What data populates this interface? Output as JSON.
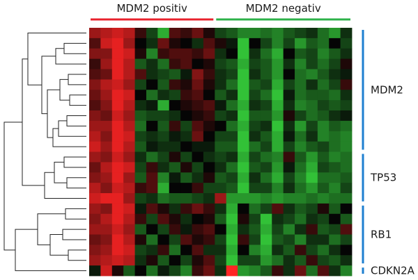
{
  "chart_data": {
    "type": "heatmap",
    "title": "",
    "column_groups": [
      {
        "label": "MDM2 positiv",
        "count": 11,
        "color": "#e8222c"
      },
      {
        "label": "MDM2 negativ",
        "count": 12,
        "color": "#2db24a"
      }
    ],
    "row_groups": [
      {
        "label": "MDM2",
        "rows": 12,
        "color": "#1e7fd0"
      },
      {
        "label": "TP53",
        "rows": 5,
        "color": "#1e7fd0"
      },
      {
        "label": "RB1",
        "rows": 6,
        "color": "#1e7fd0"
      },
      {
        "label": "CDKN2A",
        "rows": 1,
        "color": "#1e7fd0"
      }
    ],
    "color_scale": {
      "low": "#37d63d",
      "mid": "#050505",
      "high": "#ff2424",
      "range": [
        -1,
        1
      ]
    },
    "values": [
      [
        0.6,
        0.7,
        0.8,
        0.7,
        0.2,
        -0.3,
        -0.8,
        0.3,
        0.2,
        0.4,
        0.1,
        -0.3,
        -0.4,
        -0.6,
        -0.6,
        -0.5,
        -0.6,
        -0.4,
        -0.3,
        -0.2,
        -0.5,
        -0.7,
        -0.2
      ],
      [
        0.3,
        0.8,
        0.9,
        0.6,
        0.0,
        -0.2,
        0.4,
        0.1,
        0.0,
        -0.2,
        0.3,
        0.1,
        -0.1,
        -0.9,
        0.0,
        -0.3,
        -0.6,
        -0.3,
        -0.7,
        -0.4,
        -0.5,
        0.0,
        -0.3
      ],
      [
        0.5,
        0.5,
        0.9,
        0.8,
        0.1,
        -0.6,
        0.2,
        0.3,
        0.3,
        0.2,
        0.4,
        -0.2,
        0.0,
        -0.9,
        -0.2,
        -0.5,
        -0.8,
        0.0,
        -0.4,
        -0.3,
        -0.6,
        -0.4,
        -0.2
      ],
      [
        0.2,
        0.6,
        0.9,
        0.7,
        -0.4,
        -0.2,
        -0.5,
        0.2,
        0.3,
        0.0,
        0.1,
        -0.3,
        -0.4,
        -0.8,
        -0.3,
        -0.4,
        -0.7,
        -0.2,
        -0.6,
        -0.3,
        -0.5,
        -0.3,
        0.1
      ],
      [
        0.3,
        0.4,
        0.9,
        0.7,
        0.3,
        -0.2,
        -0.3,
        -0.4,
        -0.1,
        0.5,
        0.2,
        -0.2,
        -0.3,
        -0.9,
        -0.2,
        -0.4,
        -0.7,
        0.0,
        -0.5,
        -0.6,
        -0.4,
        -0.2,
        -0.1
      ],
      [
        0.5,
        0.7,
        0.8,
        0.6,
        -0.3,
        0.0,
        -0.4,
        0.2,
        0.1,
        0.4,
        0.1,
        -0.2,
        -0.5,
        -0.9,
        -0.4,
        -0.3,
        -0.8,
        -0.3,
        -0.5,
        -0.2,
        -0.5,
        -0.3,
        0.2
      ],
      [
        0.4,
        0.6,
        0.9,
        0.8,
        0.0,
        -0.5,
        -0.2,
        -0.3,
        0.2,
        0.3,
        0.0,
        -0.4,
        -0.2,
        -0.9,
        -0.3,
        -0.5,
        -0.9,
        -0.1,
        -0.5,
        -0.4,
        -0.4,
        -0.5,
        -0.2
      ],
      [
        0.3,
        0.5,
        0.9,
        0.7,
        -0.2,
        -0.1,
        -0.8,
        0.0,
        0.1,
        0.2,
        0.3,
        -0.1,
        -0.5,
        -0.8,
        -0.2,
        -0.3,
        -0.8,
        -0.2,
        -0.6,
        -0.5,
        -0.3,
        -0.4,
        -0.3
      ],
      [
        0.5,
        0.4,
        0.8,
        0.6,
        -0.4,
        -0.3,
        -0.3,
        -0.2,
        0.0,
        0.1,
        0.2,
        -0.3,
        -0.2,
        -0.9,
        -0.4,
        -0.4,
        -0.7,
        0.1,
        -0.3,
        -0.5,
        -0.4,
        -0.2,
        -0.1
      ],
      [
        0.6,
        0.6,
        0.9,
        0.7,
        -0.5,
        0.0,
        -0.4,
        0.2,
        -0.3,
        0.3,
        0.1,
        0.0,
        -0.5,
        -0.8,
        -0.3,
        -0.2,
        -0.9,
        -0.2,
        -0.7,
        -0.3,
        -0.6,
        -0.4,
        -0.5
      ],
      [
        0.7,
        0.5,
        0.9,
        0.8,
        -0.3,
        -0.2,
        -0.3,
        -0.1,
        -0.2,
        0.4,
        0.0,
        -0.3,
        -0.3,
        -0.9,
        -0.2,
        -0.4,
        -0.8,
        -0.1,
        -0.5,
        -0.2,
        -0.6,
        -0.5,
        -0.6
      ],
      [
        0.8,
        0.6,
        0.9,
        0.7,
        -0.4,
        -0.1,
        -0.2,
        -0.2,
        0.0,
        -0.1,
        -0.1,
        -0.4,
        -0.4,
        -0.9,
        -0.5,
        -0.3,
        -0.8,
        -0.3,
        -0.6,
        -0.4,
        -0.3,
        -0.5,
        -0.6
      ],
      [
        0.6,
        0.5,
        0.8,
        0.6,
        -0.2,
        -0.5,
        -0.3,
        0.1,
        -0.3,
        0.0,
        -0.2,
        -0.3,
        -0.2,
        -0.8,
        -0.3,
        -0.5,
        -0.6,
        0.2,
        -0.4,
        -0.7,
        -0.4,
        -0.6,
        -0.5
      ],
      [
        0.4,
        0.7,
        0.9,
        0.8,
        -0.3,
        0.2,
        -0.2,
        -0.4,
        0.1,
        -0.3,
        0.0,
        -0.2,
        -0.5,
        -0.9,
        -0.4,
        -0.3,
        -0.7,
        -0.1,
        -0.5,
        -0.8,
        -0.3,
        -0.4,
        -0.5
      ],
      [
        0.5,
        0.6,
        0.9,
        0.6,
        -0.4,
        0.3,
        -0.6,
        -0.1,
        -0.4,
        -0.2,
        0.1,
        -0.4,
        -0.3,
        -0.8,
        -0.2,
        -0.5,
        -0.8,
        -0.3,
        -0.6,
        -0.9,
        -0.5,
        -0.5,
        -0.4
      ],
      [
        0.7,
        0.5,
        0.8,
        0.7,
        0.2,
        0.3,
        -0.8,
        0.0,
        0.0,
        0.2,
        -0.3,
        -0.3,
        -0.4,
        -0.9,
        -0.3,
        -0.3,
        -0.6,
        -0.2,
        -0.5,
        -0.7,
        -0.4,
        -0.6,
        -0.3
      ],
      [
        0.8,
        0.9,
        0.9,
        0.6,
        -0.3,
        -0.2,
        -0.5,
        -0.4,
        -0.4,
        -0.3,
        -0.2,
        0.6,
        -0.7,
        -0.7,
        -0.7,
        -0.6,
        -0.7,
        -0.6,
        -0.6,
        -0.5,
        -0.6,
        -0.5,
        -0.5
      ],
      [
        0.6,
        0.5,
        0.9,
        0.8,
        -0.1,
        0.3,
        0.1,
        -0.2,
        0.2,
        0.4,
        0.2,
        -0.2,
        -0.8,
        0.0,
        -0.5,
        -0.3,
        0.3,
        -0.2,
        -0.4,
        -0.3,
        0.1,
        -0.4,
        0.0
      ],
      [
        0.5,
        0.7,
        0.9,
        0.7,
        0.2,
        -0.3,
        0.3,
        0.1,
        -0.2,
        0.0,
        0.1,
        -0.4,
        -0.9,
        0.1,
        -0.3,
        -0.9,
        -0.2,
        -0.3,
        -0.5,
        -0.2,
        -0.3,
        0.0,
        -0.4
      ],
      [
        0.6,
        0.6,
        0.8,
        0.6,
        -0.4,
        0.0,
        -0.3,
        0.2,
        -0.1,
        0.2,
        0.3,
        0.0,
        -0.8,
        -0.2,
        -0.4,
        -0.8,
        -0.3,
        -0.6,
        -0.2,
        0.2,
        -0.4,
        -0.3,
        0.3
      ],
      [
        0.4,
        0.5,
        0.9,
        0.7,
        0.1,
        -0.5,
        0.0,
        -0.3,
        0.3,
        0.1,
        0.2,
        -0.3,
        -0.9,
        0.2,
        -0.3,
        -0.9,
        -0.4,
        -0.3,
        -0.6,
        -0.2,
        -0.2,
        -0.5,
        -0.3
      ],
      [
        0.5,
        0.6,
        0.9,
        0.8,
        -0.3,
        -0.2,
        0.2,
        -0.5,
        0.0,
        0.3,
        -0.2,
        -0.2,
        -0.8,
        0.0,
        -0.6,
        -0.8,
        -0.2,
        -0.4,
        0.2,
        -0.3,
        -0.5,
        -0.2,
        0.0
      ],
      [
        0.6,
        0.7,
        0.8,
        0.7,
        -0.2,
        0.1,
        -0.4,
        0.0,
        -0.3,
        0.1,
        0.3,
        -0.3,
        -0.9,
        -0.3,
        -0.3,
        -0.7,
        -0.5,
        -0.2,
        -0.4,
        0.2,
        -0.3,
        -0.4,
        -0.2
      ],
      [
        -0.1,
        0.8,
        0.1,
        -0.4,
        0.0,
        -0.5,
        -0.1,
        -0.3,
        -0.6,
        0.2,
        0.4,
        -0.2,
        1.0,
        -0.7,
        -0.6,
        -0.4,
        0.2,
        -0.2,
        0.4,
        -0.5,
        0.3,
        -0.2,
        -0.6
      ]
    ]
  }
}
